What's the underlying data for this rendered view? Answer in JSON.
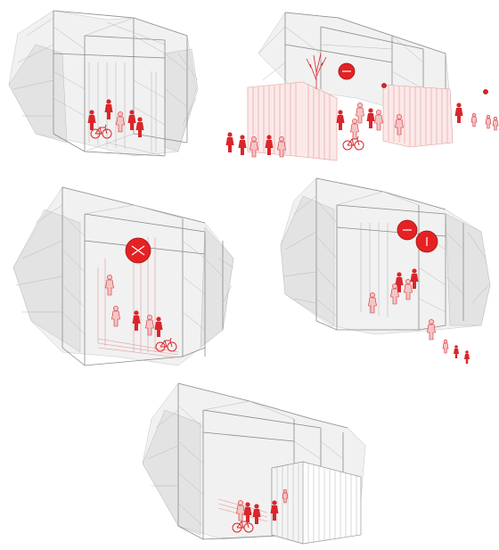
{
  "figure": {
    "panels": [
      {
        "id": "panel-1",
        "scene": "open-pavilion-gathering"
      },
      {
        "id": "panel-2",
        "scene": "pavilion-with-timber-enclosures"
      },
      {
        "id": "panel-3",
        "scene": "pavilion-with-hanging-disc"
      },
      {
        "id": "panel-4",
        "scene": "pavilion-with-two-discs"
      },
      {
        "id": "panel-5",
        "scene": "pavilion-with-closed-box"
      }
    ],
    "colors": {
      "structure": "#8a8a8a",
      "mesh": "#e6e6e6",
      "accent_red": "#e52124",
      "figure_red": "#d9262b",
      "slat_pink": "#e39a9a",
      "background": "#ffffff"
    },
    "icons": [
      "scaffold-frame-icon",
      "person-icon",
      "bicycle-icon",
      "red-disc-icon",
      "tree-icon"
    ]
  }
}
